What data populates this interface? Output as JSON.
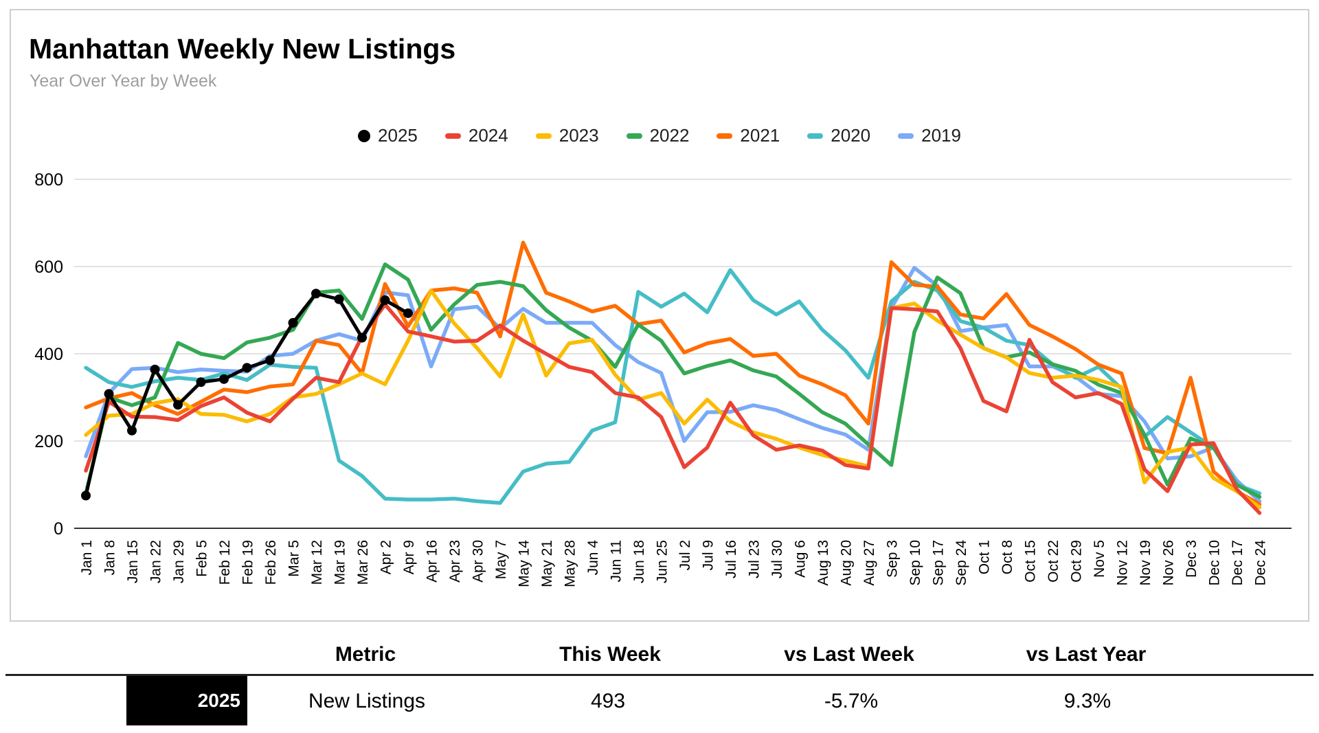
{
  "chart": {
    "title": "Manhattan Weekly New Listings",
    "subtitle": "Year Over Year by Week"
  },
  "chart_data": {
    "type": "line",
    "title": "Manhattan Weekly New Listings",
    "subtitle": "Year Over Year by Week",
    "legend_position": "top",
    "grid": true,
    "ylim": [
      0,
      800
    ],
    "yticks": [
      0,
      200,
      400,
      600,
      800
    ],
    "x": [
      "Jan 1",
      "Jan 8",
      "Jan 15",
      "Jan 22",
      "Jan 29",
      "Feb 5",
      "Feb 12",
      "Feb 19",
      "Feb 26",
      "Mar 5",
      "Mar 12",
      "Mar 19",
      "Mar 26",
      "Apr 2",
      "Apr 9",
      "Apr 16",
      "Apr 23",
      "Apr 30",
      "May 7",
      "May 14",
      "May 21",
      "May 28",
      "Jun 4",
      "Jun 11",
      "Jun 18",
      "Jun 25",
      "Jul 2",
      "Jul 9",
      "Jul 16",
      "Jul 23",
      "Jul 30",
      "Aug 6",
      "Aug 13",
      "Aug 20",
      "Aug 27",
      "Sep 3",
      "Sep 10",
      "Sep 17",
      "Sep 24",
      "Oct 1",
      "Oct 8",
      "Oct 15",
      "Oct 22",
      "Oct 29",
      "Nov 5",
      "Nov 12",
      "Nov 19",
      "Nov 26",
      "Dec 3",
      "Dec 10",
      "Dec 17",
      "Dec 24"
    ],
    "series": [
      {
        "name": "2025",
        "color": "#000000",
        "marker": "circle",
        "values": [
          75,
          308,
          224,
          364,
          283,
          335,
          342,
          368,
          385,
          471,
          538,
          525,
          437,
          523,
          493,
          null,
          null,
          null,
          null,
          null,
          null,
          null,
          null,
          null,
          null,
          null,
          null,
          null,
          null,
          null,
          null,
          null,
          null,
          null,
          null,
          null,
          null,
          null,
          null,
          null,
          null,
          null,
          null,
          null,
          null,
          null,
          null,
          null,
          null,
          null,
          null,
          null
        ]
      },
      {
        "name": "2024",
        "color": "#EA4335",
        "marker": "bar",
        "values": [
          132,
          290,
          256,
          255,
          248,
          280,
          300,
          265,
          245,
          297,
          345,
          335,
          440,
          513,
          451,
          440,
          428,
          430,
          465,
          430,
          400,
          370,
          358,
          310,
          300,
          255,
          140,
          185,
          288,
          213,
          180,
          190,
          178,
          145,
          137,
          505,
          502,
          497,
          413,
          292,
          268,
          432,
          335,
          300,
          310,
          285,
          135,
          85,
          192,
          195,
          90,
          35
        ]
      },
      {
        "name": "2023",
        "color": "#FBBC04",
        "marker": "bar",
        "values": [
          214,
          258,
          262,
          287,
          296,
          262,
          260,
          245,
          262,
          300,
          308,
          330,
          355,
          330,
          430,
          545,
          470,
          413,
          348,
          490,
          350,
          424,
          432,
          352,
          295,
          310,
          240,
          295,
          245,
          220,
          205,
          185,
          168,
          155,
          142,
          505,
          515,
          476,
          444,
          413,
          392,
          356,
          345,
          350,
          340,
          324,
          105,
          175,
          185,
          115,
          85,
          48
        ]
      },
      {
        "name": "2022",
        "color": "#34A853",
        "marker": "bar",
        "values": [
          80,
          300,
          282,
          300,
          425,
          400,
          390,
          426,
          437,
          455,
          540,
          545,
          480,
          605,
          570,
          455,
          513,
          558,
          565,
          555,
          500,
          460,
          430,
          370,
          467,
          430,
          355,
          372,
          385,
          362,
          348,
          308,
          266,
          240,
          192,
          145,
          450,
          575,
          539,
          413,
          392,
          403,
          376,
          361,
          329,
          310,
          214,
          100,
          206,
          185,
          100,
          72
        ]
      },
      {
        "name": "2021",
        "color": "#FF6D01",
        "marker": "bar",
        "values": [
          277,
          298,
          310,
          282,
          262,
          290,
          318,
          312,
          325,
          330,
          430,
          420,
          355,
          560,
          463,
          545,
          550,
          540,
          440,
          655,
          540,
          520,
          497,
          510,
          468,
          476,
          403,
          424,
          434,
          395,
          400,
          350,
          330,
          305,
          240,
          610,
          558,
          554,
          490,
          481,
          537,
          466,
          440,
          411,
          375,
          355,
          184,
          172,
          345,
          130,
          85,
          55
        ]
      },
      {
        "name": "2020",
        "color": "#46BDC6",
        "marker": "bar",
        "values": [
          368,
          335,
          324,
          337,
          345,
          340,
          355,
          340,
          375,
          370,
          368,
          155,
          120,
          68,
          66,
          66,
          68,
          62,
          58,
          130,
          148,
          152,
          224,
          243,
          542,
          508,
          538,
          495,
          592,
          523,
          490,
          520,
          455,
          408,
          345,
          520,
          565,
          545,
          475,
          460,
          430,
          420,
          376,
          345,
          370,
          320,
          210,
          255,
          220,
          185,
          100,
          80
        ]
      },
      {
        "name": "2019",
        "color": "#7BAAF7",
        "marker": "bar",
        "values": [
          165,
          310,
          365,
          368,
          358,
          364,
          361,
          359,
          395,
          400,
          430,
          445,
          430,
          541,
          534,
          371,
          502,
          508,
          458,
          503,
          471,
          471,
          471,
          420,
          381,
          356,
          200,
          266,
          267,
          282,
          271,
          250,
          230,
          215,
          180,
          505,
          597,
          556,
          452,
          460,
          466,
          371,
          371,
          348,
          308,
          303,
          245,
          160,
          165,
          185,
          110,
          62
        ]
      }
    ]
  },
  "table": {
    "row_label": "2025",
    "headers": [
      "Metric",
      "This Week",
      "vs Last Week",
      "vs Last Year"
    ],
    "row": [
      "New Listings",
      "493",
      "-5.7%",
      "9.3%"
    ]
  }
}
